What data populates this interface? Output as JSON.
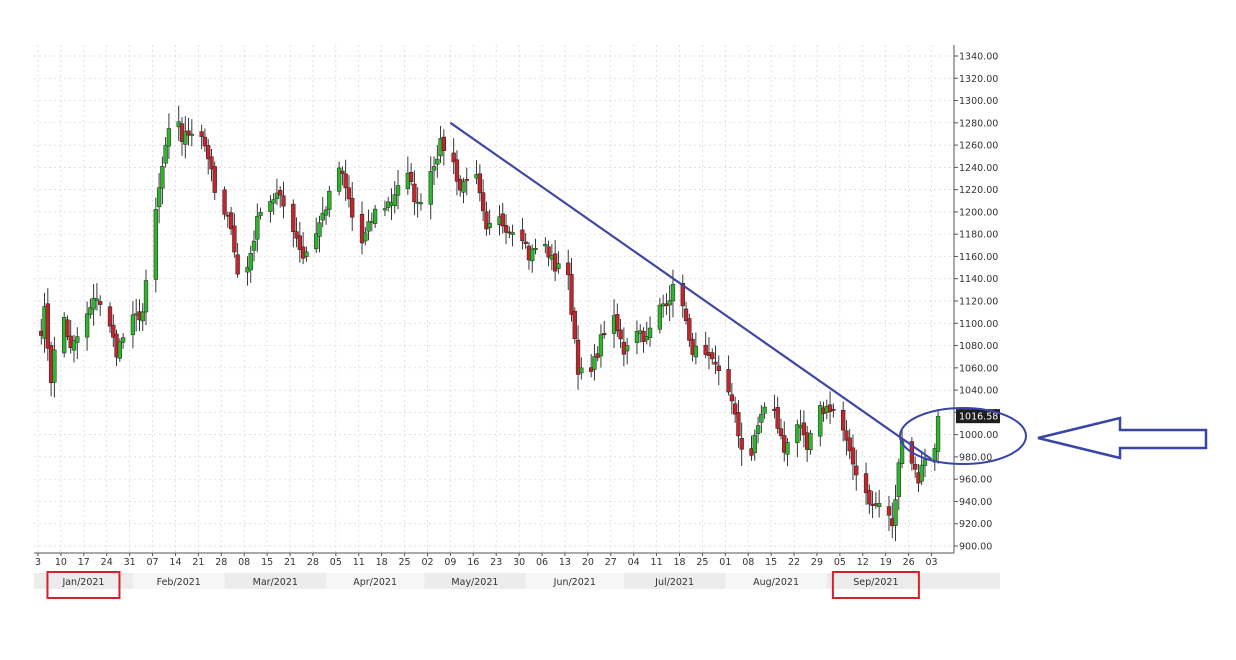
{
  "chart_data": {
    "type": "candlestick",
    "title": "",
    "xlabel": "",
    "ylabel": "",
    "ylim": [
      895,
      1345
    ],
    "y_ticks": [
      1340,
      1320,
      1300,
      1280,
      1260,
      1240,
      1220,
      1200,
      1180,
      1160,
      1140,
      1120,
      1100,
      1080,
      1060,
      1040,
      1020,
      1000,
      980,
      960,
      940,
      920,
      900
    ],
    "y_tick_labels": [
      "1340.00",
      "1320.00",
      "1300.00",
      "1280.00",
      "1260.00",
      "1240.00",
      "1220.00",
      "1200.00",
      "1180.00",
      "1160.00",
      "1140.00",
      "1120.00",
      "1100.00",
      "1080.00",
      "1060.00",
      "1040.00",
      "1020.00",
      "1000.00",
      "980.00",
      "960.00",
      "940.00",
      "920.00",
      "900.00"
    ],
    "x_tick_labels": [
      "3",
      "10",
      "17",
      "24",
      "31",
      "07",
      "14",
      "21",
      "28",
      "08",
      "15",
      "21",
      "28",
      "05",
      "11",
      "18",
      "25",
      "02",
      "09",
      "16",
      "23",
      "30",
      "06",
      "13",
      "20",
      "27",
      "04",
      "11",
      "18",
      "25",
      "01",
      "08",
      "15",
      "22",
      "29",
      "05",
      "12",
      "19",
      "26",
      "03"
    ],
    "months": [
      "Jan/2021",
      "Feb/2021",
      "Mar/2021",
      "Apr/2021",
      "May/2021",
      "Jun/2021",
      "Jul/2021",
      "Aug/2021",
      "Sep/2021"
    ],
    "highlighted_months": [
      "Jan/2021",
      "Sep/2021"
    ],
    "last_price": "1016.58",
    "trendline": {
      "from": {
        "date": "2021-05-09",
        "value": 1280
      },
      "to": {
        "date": "2021-10-03",
        "value": 978
      }
    },
    "anchor_points": [
      {
        "date": "2021-01-03",
        "value": 1080
      },
      {
        "date": "2021-01-05",
        "value": 1110
      },
      {
        "date": "2021-01-07",
        "value": 1050
      },
      {
        "date": "2021-01-10",
        "value": 1120
      },
      {
        "date": "2021-01-13",
        "value": 1075
      },
      {
        "date": "2021-01-17",
        "value": 1100
      },
      {
        "date": "2021-01-21",
        "value": 1125
      },
      {
        "date": "2021-01-24",
        "value": 1105
      },
      {
        "date": "2021-01-27",
        "value": 1075
      },
      {
        "date": "2021-01-31",
        "value": 1100
      },
      {
        "date": "2021-02-04",
        "value": 1110
      },
      {
        "date": "2021-02-07",
        "value": 1180
      },
      {
        "date": "2021-02-10",
        "value": 1240
      },
      {
        "date": "2021-02-14",
        "value": 1300
      },
      {
        "date": "2021-02-16",
        "value": 1265
      },
      {
        "date": "2021-02-21",
        "value": 1280
      },
      {
        "date": "2021-02-24",
        "value": 1250
      },
      {
        "date": "2021-02-27",
        "value": 1200
      },
      {
        "date": "2021-03-03",
        "value": 1190
      },
      {
        "date": "2021-03-06",
        "value": 1120
      },
      {
        "date": "2021-03-08",
        "value": 1150
      },
      {
        "date": "2021-03-12",
        "value": 1205
      },
      {
        "date": "2021-03-17",
        "value": 1215
      },
      {
        "date": "2021-03-21",
        "value": 1195
      },
      {
        "date": "2021-03-25",
        "value": 1160
      },
      {
        "date": "2021-03-28",
        "value": 1175
      },
      {
        "date": "2021-04-01",
        "value": 1205
      },
      {
        "date": "2021-04-05",
        "value": 1240
      },
      {
        "date": "2021-04-08",
        "value": 1210
      },
      {
        "date": "2021-04-11",
        "value": 1165
      },
      {
        "date": "2021-04-16",
        "value": 1200
      },
      {
        "date": "2021-04-21",
        "value": 1210
      },
      {
        "date": "2021-04-25",
        "value": 1240
      },
      {
        "date": "2021-04-29",
        "value": 1205
      },
      {
        "date": "2021-05-02",
        "value": 1230
      },
      {
        "date": "2021-05-06",
        "value": 1260
      },
      {
        "date": "2021-05-09",
        "value": 1255
      },
      {
        "date": "2021-05-12",
        "value": 1220
      },
      {
        "date": "2021-05-16",
        "value": 1245
      },
      {
        "date": "2021-05-20",
        "value": 1180
      },
      {
        "date": "2021-05-23",
        "value": 1195
      },
      {
        "date": "2021-05-27",
        "value": 1185
      },
      {
        "date": "2021-05-30",
        "value": 1190
      },
      {
        "date": "2021-06-02",
        "value": 1160
      },
      {
        "date": "2021-06-06",
        "value": 1175
      },
      {
        "date": "2021-06-10",
        "value": 1150
      },
      {
        "date": "2021-06-13",
        "value": 1165
      },
      {
        "date": "2021-06-17",
        "value": 1060
      },
      {
        "date": "2021-06-20",
        "value": 1045
      },
      {
        "date": "2021-06-24",
        "value": 1085
      },
      {
        "date": "2021-06-27",
        "value": 1110
      },
      {
        "date": "2021-07-01",
        "value": 1075
      },
      {
        "date": "2021-07-04",
        "value": 1100
      },
      {
        "date": "2021-07-08",
        "value": 1085
      },
      {
        "date": "2021-07-11",
        "value": 1110
      },
      {
        "date": "2021-07-15",
        "value": 1125
      },
      {
        "date": "2021-07-18",
        "value": 1140
      },
      {
        "date": "2021-07-21",
        "value": 1080
      },
      {
        "date": "2021-07-25",
        "value": 1070
      },
      {
        "date": "2021-07-29",
        "value": 1060
      },
      {
        "date": "2021-08-01",
        "value": 1055
      },
      {
        "date": "2021-08-05",
        "value": 1000
      },
      {
        "date": "2021-08-08",
        "value": 970
      },
      {
        "date": "2021-08-12",
        "value": 1020
      },
      {
        "date": "2021-08-15",
        "value": 1030
      },
      {
        "date": "2021-08-19",
        "value": 985
      },
      {
        "date": "2021-08-22",
        "value": 1020
      },
      {
        "date": "2021-08-26",
        "value": 985
      },
      {
        "date": "2021-08-29",
        "value": 1020
      },
      {
        "date": "2021-09-02",
        "value": 1025
      },
      {
        "date": "2021-09-05",
        "value": 1015
      },
      {
        "date": "2021-09-08",
        "value": 980
      },
      {
        "date": "2021-09-12",
        "value": 955
      },
      {
        "date": "2021-09-15",
        "value": 935
      },
      {
        "date": "2021-09-19",
        "value": 940
      },
      {
        "date": "2021-09-21",
        "value": 915
      },
      {
        "date": "2021-09-24",
        "value": 1000
      },
      {
        "date": "2021-09-26",
        "value": 985
      },
      {
        "date": "2021-09-29",
        "value": 960
      },
      {
        "date": "2021-10-01",
        "value": 980
      },
      {
        "date": "2021-10-03",
        "value": 965
      },
      {
        "date": "2021-10-05",
        "value": 1016.58
      }
    ],
    "colors": {
      "up": "#2db52d",
      "down": "#c0262d",
      "trendline": "#4046a6",
      "highlight": "#d2222a",
      "callout": "#3a45a8"
    }
  }
}
